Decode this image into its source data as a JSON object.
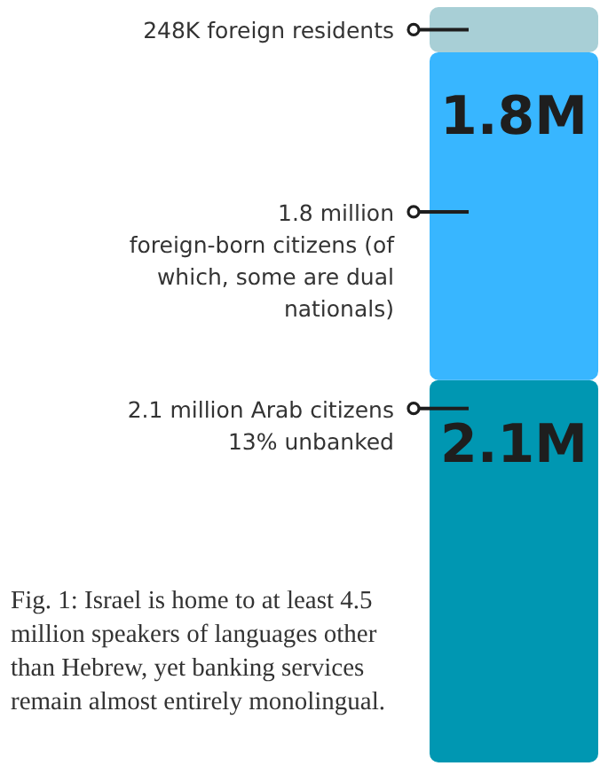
{
  "chart_data": {
    "type": "bar",
    "stacked": true,
    "categories": [
      null
    ],
    "series": [
      {
        "color": "#0097b2",
        "values": [
          2.1
        ],
        "value_labels": [
          "2.1M"
        ]
      },
      {
        "color": "#38b6ff",
        "values": [
          1.8
        ],
        "value_labels": [
          "1.8M"
        ]
      },
      {
        "color": "#a8cfd6",
        "values": [
          0.248
        ],
        "value_labels": [
          null
        ]
      }
    ],
    "annotations": [
      "248K foreign residents",
      "1.8 million\nforeign-born citizens (of\nwhich, some are dual\nnationals)",
      "2.1 million Arab citizens\n13% unbanked",
      "Fig. 1: Israel is home to at least 4.5\nmillion speakers of languages other\nthan Hebrew, yet banking services\nremain almost entirely monolingual."
    ]
  }
}
